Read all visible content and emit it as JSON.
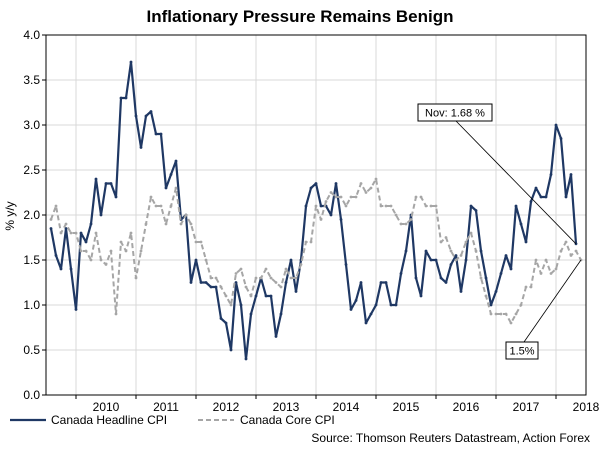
{
  "chart_data": {
    "type": "line",
    "title": "Inflationary Pressure Remains Benign",
    "ylabel": "% y/y",
    "xlabel": "",
    "ylim": [
      0.0,
      4.0
    ],
    "yticks": [
      "0.0",
      "0.5",
      "1.0",
      "1.5",
      "2.0",
      "2.5",
      "3.0",
      "3.5",
      "4.0"
    ],
    "xlim": [
      2009.5,
      2018.5
    ],
    "xticks": [
      "2010",
      "2011",
      "2012",
      "2013",
      "2014",
      "2015",
      "2016",
      "2017",
      "2018"
    ],
    "grid": true,
    "legend_position": "bottom-left",
    "series": [
      {
        "name": "Canada Headline CPI",
        "color": "#1f3864",
        "style": "solid",
        "start": 2009.583,
        "step": 0.08333,
        "values": [
          1.85,
          1.55,
          1.4,
          1.85,
          1.4,
          0.95,
          1.8,
          1.7,
          1.9,
          2.4,
          2.0,
          2.35,
          2.35,
          2.2,
          3.3,
          3.3,
          3.7,
          3.1,
          2.75,
          3.1,
          3.15,
          2.9,
          2.9,
          2.3,
          2.45,
          2.6,
          1.95,
          2.0,
          1.25,
          1.5,
          1.25,
          1.25,
          1.2,
          1.2,
          0.85,
          0.8,
          0.5,
          1.25,
          1.0,
          0.4,
          0.9,
          1.1,
          1.3,
          1.1,
          1.1,
          0.65,
          0.9,
          1.25,
          1.5,
          1.15,
          1.5,
          2.1,
          2.3,
          2.35,
          2.1,
          2.1,
          2.0,
          2.35,
          1.95,
          1.45,
          0.95,
          1.05,
          1.25,
          0.8,
          0.9,
          1.0,
          1.25,
          1.25,
          1.0,
          1.0,
          1.35,
          1.6,
          2.0,
          1.3,
          1.1,
          1.6,
          1.5,
          1.5,
          1.3,
          1.25,
          1.45,
          1.55,
          1.15,
          1.5,
          2.1,
          2.05,
          1.6,
          1.3,
          1.0,
          1.15,
          1.35,
          1.55,
          1.4,
          2.1,
          1.9,
          1.7,
          2.15,
          2.3,
          2.2,
          2.2,
          2.45,
          3.0,
          2.85,
          2.2,
          2.45,
          1.68
        ]
      },
      {
        "name": "Canada Core CPI",
        "color": "#a6a6a6",
        "style": "dashed",
        "start": 2009.583,
        "step": 0.08333,
        "values": [
          1.95,
          2.1,
          1.8,
          1.9,
          1.8,
          1.8,
          1.6,
          1.6,
          1.5,
          1.8,
          1.5,
          1.45,
          1.6,
          0.9,
          1.7,
          1.6,
          1.8,
          1.3,
          1.6,
          1.9,
          2.2,
          2.1,
          2.1,
          1.9,
          2.1,
          2.3,
          1.9,
          2.0,
          1.9,
          1.7,
          1.7,
          1.5,
          1.3,
          1.3,
          1.2,
          1.1,
          1.0,
          1.35,
          1.4,
          1.2,
          1.1,
          1.3,
          1.3,
          1.4,
          1.3,
          1.25,
          1.2,
          1.4,
          1.3,
          1.3,
          1.45,
          1.7,
          1.7,
          2.1,
          1.95,
          2.15,
          2.25,
          2.2,
          2.2,
          2.1,
          2.2,
          2.2,
          2.35,
          2.25,
          2.3,
          2.4,
          2.1,
          2.1,
          2.1,
          2.0,
          1.9,
          1.9,
          1.95,
          2.2,
          2.2,
          2.1,
          2.1,
          2.1,
          1.7,
          1.75,
          1.6,
          1.5,
          1.55,
          1.7,
          1.8,
          1.6,
          1.3,
          1.1,
          0.9,
          0.9,
          0.9,
          0.9,
          0.8,
          0.9,
          1.0,
          1.2,
          1.2,
          1.5,
          1.35,
          1.5,
          1.35,
          1.4,
          1.6,
          1.7,
          1.55,
          1.6,
          1.5
        ]
      }
    ],
    "annotations": [
      {
        "text": "Nov: 1.68 %",
        "series": 0
      },
      {
        "text": "1.5%",
        "series": 1
      }
    ],
    "source": "Source: Thomson Reuters Datastream, Action Forex"
  }
}
